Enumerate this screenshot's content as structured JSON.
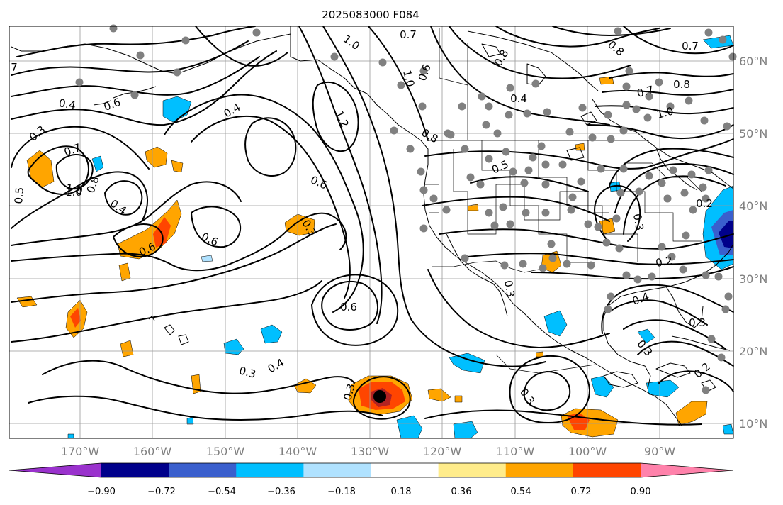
{
  "title": "2025083000 F084",
  "lat_labels": [
    "60°N",
    "50°N",
    "40°N",
    "30°N",
    "20°N",
    "10°N"
  ],
  "lon_labels": [
    "170°W",
    "160°W",
    "150°W",
    "140°W",
    "130°W",
    "120°W",
    "110°W",
    "100°W",
    "90°W"
  ],
  "colorbar": {
    "tick_labels": [
      "−0.90",
      "−0.72",
      "−0.54",
      "−0.36",
      "−0.18",
      "0.18",
      "0.36",
      "0.54",
      "0.72",
      "0.90"
    ],
    "colors": [
      "#9a32cd",
      "#00008b",
      "#3a5fcd",
      "#00bfff",
      "#b0e2ff",
      "#ffffff",
      "#ffec8b",
      "#ffa500",
      "#ff4500",
      "#b22222",
      "#ff82ab"
    ]
  },
  "contour_labels": [
    "0.7",
    "0.8",
    "0.7",
    "0.8",
    "1.0",
    "1.0",
    "0.4",
    "0.7",
    "0.8",
    "1.0",
    "0.4",
    "0.6",
    "0.4",
    "0.3",
    "0.6",
    "0.7",
    "1.0",
    "1.2",
    "0.8",
    "0.5",
    "0.8",
    "1.0",
    "0.4",
    "0.5",
    "0.6",
    "0.3",
    "0.6",
    "0.6",
    "0.2",
    "0.3",
    "0.6",
    "0.2",
    "0.4",
    "0.3",
    "0.3",
    "0.4",
    "0.3",
    "0.3",
    "0.3",
    "0.3",
    "0.2",
    "7"
  ],
  "legend_colors": {
    "contour": "#000000",
    "station_dot": "#808080",
    "gridline": "#999999",
    "label_gray": "#7f7f7f"
  }
}
